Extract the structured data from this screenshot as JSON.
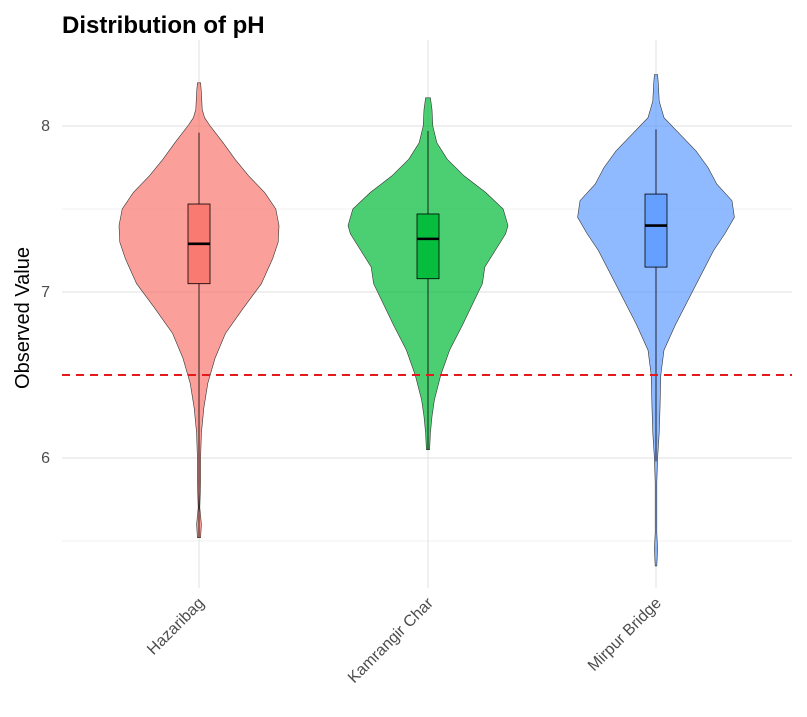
{
  "chart_data": {
    "type": "violin",
    "title": "Distribution of pH",
    "xlabel": "",
    "ylabel": "Observed Value",
    "ylim": [
      5.2,
      8.5
    ],
    "y_ticks": [
      "6",
      "7",
      "8"
    ],
    "categories": [
      "Hazaribag",
      "Kamrangir Char",
      "Mirpur Bridge"
    ],
    "colors": [
      "#F8766D",
      "#00BA38",
      "#619CFF"
    ],
    "reference_line": {
      "value": 6.5,
      "color": "#E41A1C",
      "style": "dashed"
    },
    "grid": true,
    "series": [
      {
        "category": "Hazaribag",
        "min": 5.52,
        "q1": 7.05,
        "median": 7.29,
        "q3": 7.53,
        "max": 8.26,
        "whisker_low": 5.52,
        "whisker_high": 7.96,
        "density": [
          [
            5.52,
            0.02
          ],
          [
            5.6,
            0.03
          ],
          [
            5.7,
            0.01
          ],
          [
            5.85,
            0.02
          ],
          [
            6.0,
            0.02
          ],
          [
            6.15,
            0.03
          ],
          [
            6.3,
            0.06
          ],
          [
            6.45,
            0.11
          ],
          [
            6.6,
            0.2
          ],
          [
            6.75,
            0.33
          ],
          [
            6.9,
            0.55
          ],
          [
            7.05,
            0.78
          ],
          [
            7.2,
            0.92
          ],
          [
            7.3,
            0.99
          ],
          [
            7.4,
            1.0
          ],
          [
            7.5,
            0.96
          ],
          [
            7.6,
            0.82
          ],
          [
            7.7,
            0.62
          ],
          [
            7.8,
            0.45
          ],
          [
            7.9,
            0.3
          ],
          [
            8.0,
            0.14
          ],
          [
            8.05,
            0.07
          ],
          [
            8.1,
            0.04
          ],
          [
            8.2,
            0.03
          ],
          [
            8.26,
            0.02
          ]
        ]
      },
      {
        "category": "Kamrangir Char",
        "min": 6.05,
        "q1": 7.08,
        "median": 7.32,
        "q3": 7.47,
        "max": 8.17,
        "whisker_low": 6.05,
        "whisker_high": 7.97,
        "density": [
          [
            6.05,
            0.02
          ],
          [
            6.15,
            0.03
          ],
          [
            6.25,
            0.05
          ],
          [
            6.35,
            0.08
          ],
          [
            6.5,
            0.16
          ],
          [
            6.65,
            0.27
          ],
          [
            6.8,
            0.43
          ],
          [
            6.95,
            0.58
          ],
          [
            7.05,
            0.68
          ],
          [
            7.15,
            0.71
          ],
          [
            7.25,
            0.84
          ],
          [
            7.35,
            0.97
          ],
          [
            7.4,
            1.0
          ],
          [
            7.5,
            0.94
          ],
          [
            7.6,
            0.72
          ],
          [
            7.7,
            0.45
          ],
          [
            7.8,
            0.24
          ],
          [
            7.9,
            0.11
          ],
          [
            8.0,
            0.06
          ],
          [
            8.1,
            0.05
          ],
          [
            8.17,
            0.03
          ]
        ]
      },
      {
        "category": "Mirpur Bridge",
        "min": 5.35,
        "q1": 7.15,
        "median": 7.4,
        "q3": 7.59,
        "max": 8.31,
        "whisker_low": 5.98,
        "whisker_high": 7.98,
        "density": [
          [
            5.35,
            0.01
          ],
          [
            5.45,
            0.02
          ],
          [
            5.55,
            0.01
          ],
          [
            5.7,
            0.01
          ],
          [
            5.85,
            0.01
          ],
          [
            6.0,
            0.02
          ],
          [
            6.15,
            0.04
          ],
          [
            6.3,
            0.05
          ],
          [
            6.5,
            0.06
          ],
          [
            6.65,
            0.1
          ],
          [
            6.8,
            0.24
          ],
          [
            6.95,
            0.4
          ],
          [
            7.1,
            0.56
          ],
          [
            7.25,
            0.72
          ],
          [
            7.35,
            0.86
          ],
          [
            7.45,
            0.98
          ],
          [
            7.55,
            0.95
          ],
          [
            7.65,
            0.76
          ],
          [
            7.75,
            0.65
          ],
          [
            7.85,
            0.5
          ],
          [
            7.95,
            0.3
          ],
          [
            8.05,
            0.1
          ],
          [
            8.15,
            0.04
          ],
          [
            8.25,
            0.03
          ],
          [
            8.31,
            0.02
          ]
        ]
      }
    ]
  }
}
